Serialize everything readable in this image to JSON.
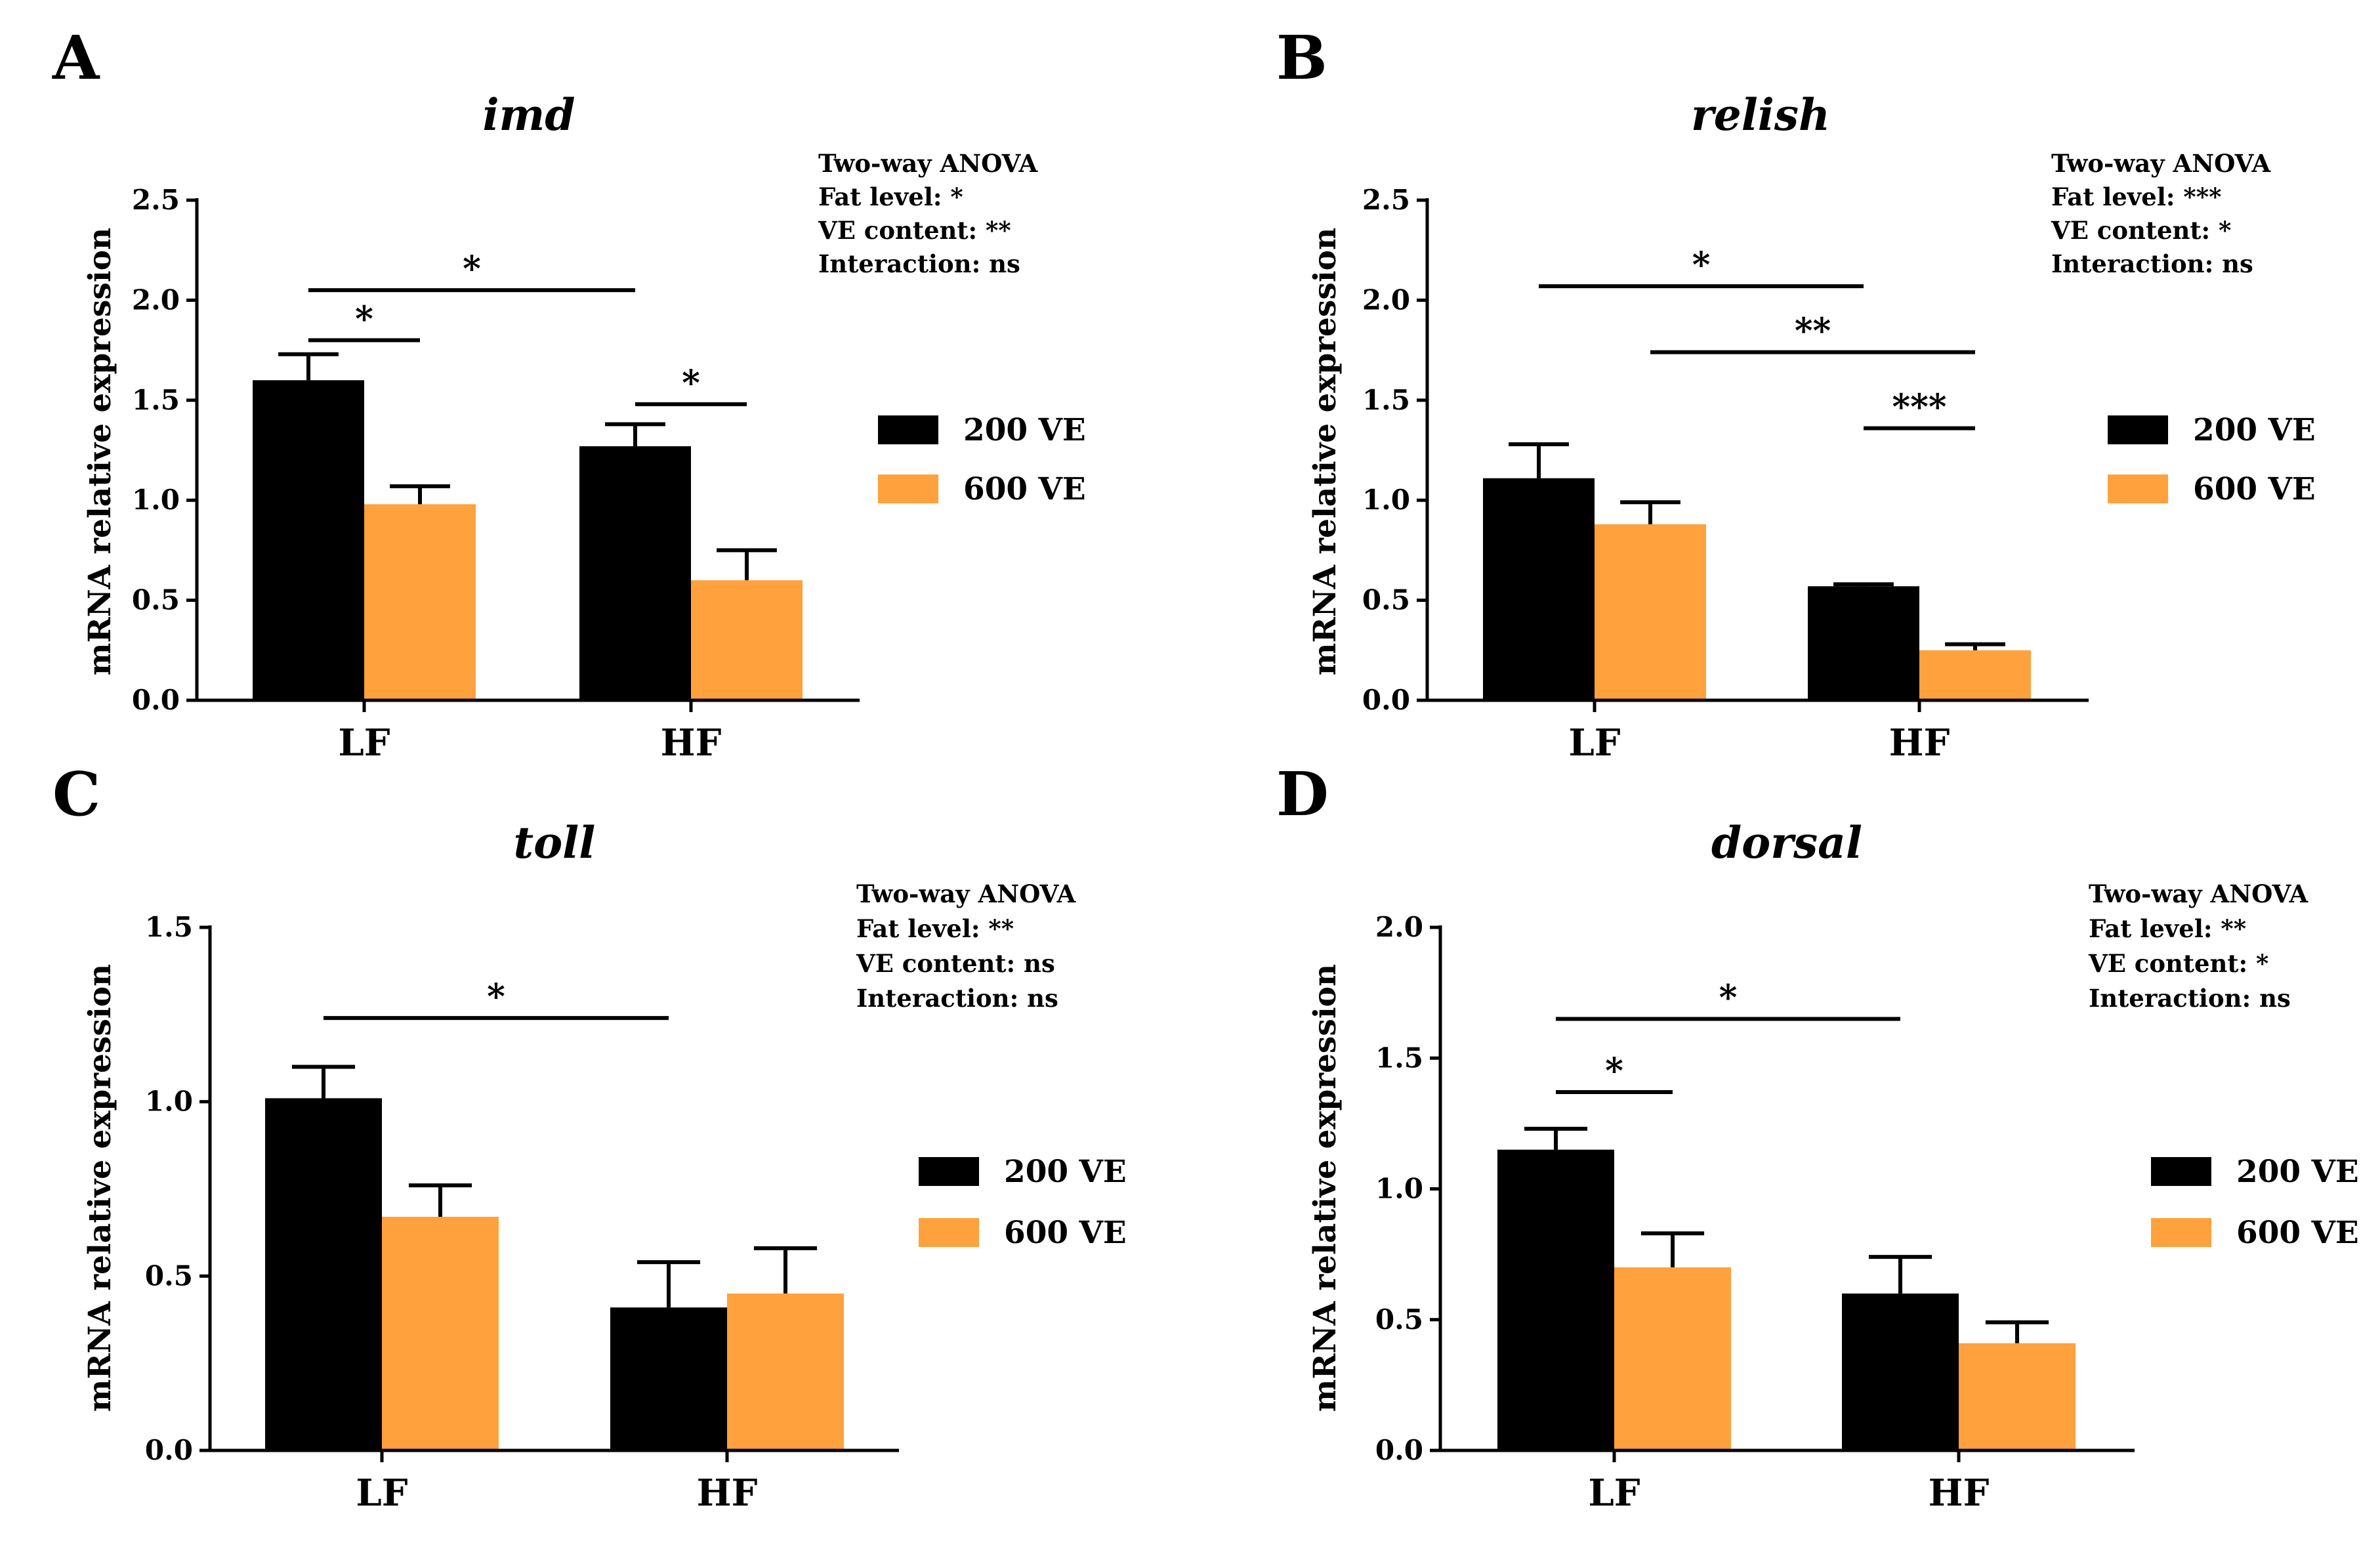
{
  "legend": {
    "series": [
      {
        "name": "200 VE",
        "color": "#000000"
      },
      {
        "name": "600 VE",
        "color": "#FFA13C"
      }
    ]
  },
  "chart_data": [
    {
      "panel": "A",
      "type": "bar",
      "title": "imd",
      "ylabel": "mRNA relative expression",
      "xlabel": "",
      "categories": [
        "LF",
        "HF"
      ],
      "ylim": [
        0,
        2.5
      ],
      "yticks": [
        "0.0",
        "0.5",
        "1.0",
        "1.5",
        "2.0",
        "2.5"
      ],
      "series": [
        {
          "name": "200 VE",
          "values": [
            1.6,
            1.27
          ],
          "errors": [
            0.13,
            0.11
          ]
        },
        {
          "name": "600 VE",
          "values": [
            0.98,
            0.6
          ],
          "errors": [
            0.09,
            0.15
          ]
        }
      ],
      "anova": [
        "Two-way ANOVA",
        "Fat level: *",
        "VE content: **",
        "Interaction: ns"
      ],
      "significance": [
        {
          "from": [
            0,
            0
          ],
          "to": [
            1,
            0
          ],
          "y": 2.05,
          "label": "*"
        },
        {
          "from": [
            0,
            0
          ],
          "to": [
            0,
            1
          ],
          "y": 1.8,
          "label": "*"
        },
        {
          "from": [
            1,
            0
          ],
          "to": [
            1,
            1
          ],
          "y": 1.48,
          "label": "*"
        }
      ]
    },
    {
      "panel": "B",
      "type": "bar",
      "title": "relish",
      "ylabel": "mRNA relative expression",
      "xlabel": "",
      "categories": [
        "LF",
        "HF"
      ],
      "ylim": [
        0,
        2.5
      ],
      "yticks": [
        "0.0",
        "0.5",
        "1.0",
        "1.5",
        "2.0",
        "2.5"
      ],
      "series": [
        {
          "name": "200 VE",
          "values": [
            1.11,
            0.57
          ],
          "errors": [
            0.17,
            0.01
          ]
        },
        {
          "name": "600 VE",
          "values": [
            0.88,
            0.25
          ],
          "errors": [
            0.11,
            0.03
          ]
        }
      ],
      "anova": [
        "Two-way ANOVA",
        "Fat level: ***",
        "VE content: *",
        "Interaction: ns"
      ],
      "significance": [
        {
          "from": [
            0,
            0
          ],
          "to": [
            1,
            0
          ],
          "y": 2.07,
          "label": "*"
        },
        {
          "from": [
            0,
            1
          ],
          "to": [
            1,
            1
          ],
          "y": 1.74,
          "label": "**"
        },
        {
          "from": [
            1,
            0
          ],
          "to": [
            1,
            1
          ],
          "y": 1.36,
          "label": "***"
        }
      ]
    },
    {
      "panel": "C",
      "type": "bar",
      "title": "toll",
      "ylabel": "mRNA relative expression",
      "xlabel": "",
      "categories": [
        "LF",
        "HF"
      ],
      "ylim": [
        0,
        1.5
      ],
      "yticks": [
        "0.0",
        "0.5",
        "1.0",
        "1.5"
      ],
      "series": [
        {
          "name": "200 VE",
          "values": [
            1.01,
            0.41
          ],
          "errors": [
            0.09,
            0.13
          ]
        },
        {
          "name": "600 VE",
          "values": [
            0.67,
            0.45
          ],
          "errors": [
            0.09,
            0.13
          ]
        }
      ],
      "anova": [
        "Two-way ANOVA",
        "Fat level: **",
        "VE content: ns",
        "Interaction: ns"
      ],
      "significance": [
        {
          "from": [
            0,
            0
          ],
          "to": [
            1,
            0
          ],
          "y": 1.24,
          "label": "*"
        }
      ]
    },
    {
      "panel": "D",
      "type": "bar",
      "title": "dorsal",
      "ylabel": "mRNA relative expression",
      "xlabel": "",
      "categories": [
        "LF",
        "HF"
      ],
      "ylim": [
        0,
        2.0
      ],
      "yticks": [
        "0.0",
        "0.5",
        "1.0",
        "1.5",
        "2.0"
      ],
      "series": [
        {
          "name": "200 VE",
          "values": [
            1.15,
            0.6
          ],
          "errors": [
            0.08,
            0.14
          ]
        },
        {
          "name": "600 VE",
          "values": [
            0.7,
            0.41
          ],
          "errors": [
            0.13,
            0.08
          ]
        }
      ],
      "anova": [
        "Two-way ANOVA",
        "Fat level: **",
        "VE content: *",
        "Interaction: ns"
      ],
      "significance": [
        {
          "from": [
            0,
            0
          ],
          "to": [
            1,
            0
          ],
          "y": 1.65,
          "label": "*"
        },
        {
          "from": [
            0,
            0
          ],
          "to": [
            0,
            1
          ],
          "y": 1.37,
          "label": "*"
        }
      ]
    }
  ]
}
